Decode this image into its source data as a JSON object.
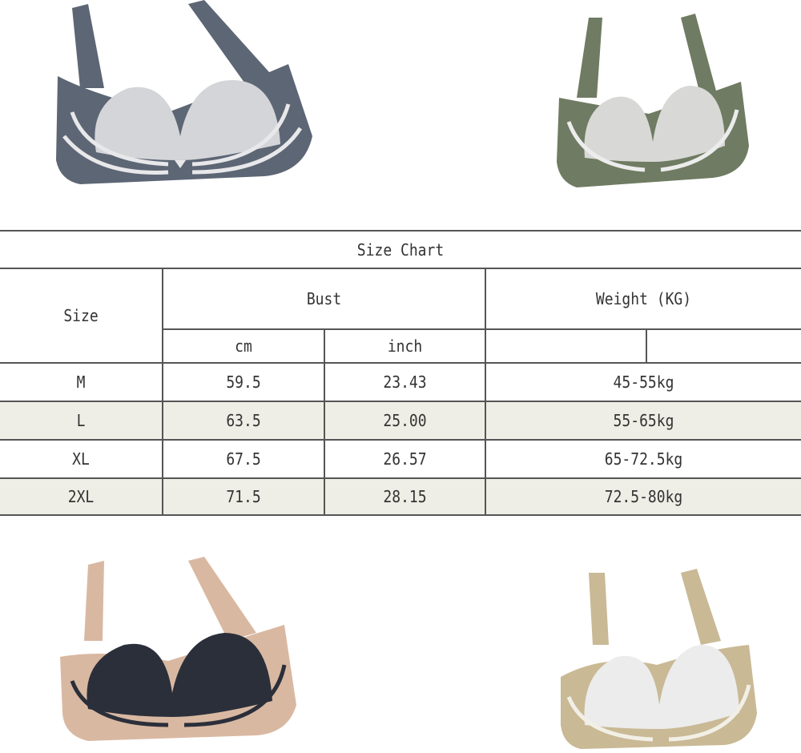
{
  "products": [
    {
      "name": "bra-slate-gray",
      "band_color": "#5d6674",
      "cup_color": "#d4d5d8",
      "accent": "#e8e8ea"
    },
    {
      "name": "bra-olive-green",
      "band_color": "#6f7b62",
      "cup_color": "#d8d9d6",
      "accent": "#ececec"
    },
    {
      "name": "bra-nude-black",
      "band_color": "#d9b8a2",
      "cup_color": "#2b2f3a",
      "accent": "#2b2f3a"
    },
    {
      "name": "bra-khaki-white",
      "band_color": "#c9b995",
      "cup_color": "#ececec",
      "accent": "#f2efe6"
    }
  ],
  "size_chart": {
    "title": "Size Chart",
    "headers": {
      "size": "Size",
      "bust": "Bust",
      "weight": "Weight (KG)",
      "cm": "cm",
      "inch": "inch"
    },
    "rows": [
      {
        "size": "M",
        "cm": "59.5",
        "inch": "23.43",
        "weight": "45-55kg"
      },
      {
        "size": "L",
        "cm": "63.5",
        "inch": "25.00",
        "weight": "55-65kg"
      },
      {
        "size": "XL",
        "cm": "67.5",
        "inch": "26.57",
        "weight": "65-72.5kg"
      },
      {
        "size": "2XL",
        "cm": "71.5",
        "inch": "28.15",
        "weight": "72.5-80kg"
      }
    ],
    "shaded_row_color": "#efeee6"
  }
}
